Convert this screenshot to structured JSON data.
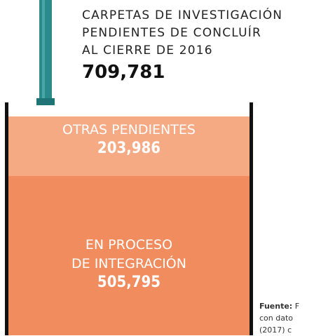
{
  "header": {
    "title_lines": [
      "CARPETAS DE INVESTIGACIÓN",
      "PENDIENTES DE CONCLUÍR",
      "AL CIERRE DE 2016"
    ],
    "total": "709,781"
  },
  "segments": [
    {
      "label_lines": [
        "OTRAS PENDIENTES"
      ],
      "value": "203,986"
    },
    {
      "label_lines": [
        "EN PROCESO",
        "DE INTEGRACIÓN"
      ],
      "value": "505,795"
    }
  ],
  "source": {
    "label": "Fuente:",
    "lines": [
      "F",
      "con dato",
      "(2017) c"
    ]
  }
}
